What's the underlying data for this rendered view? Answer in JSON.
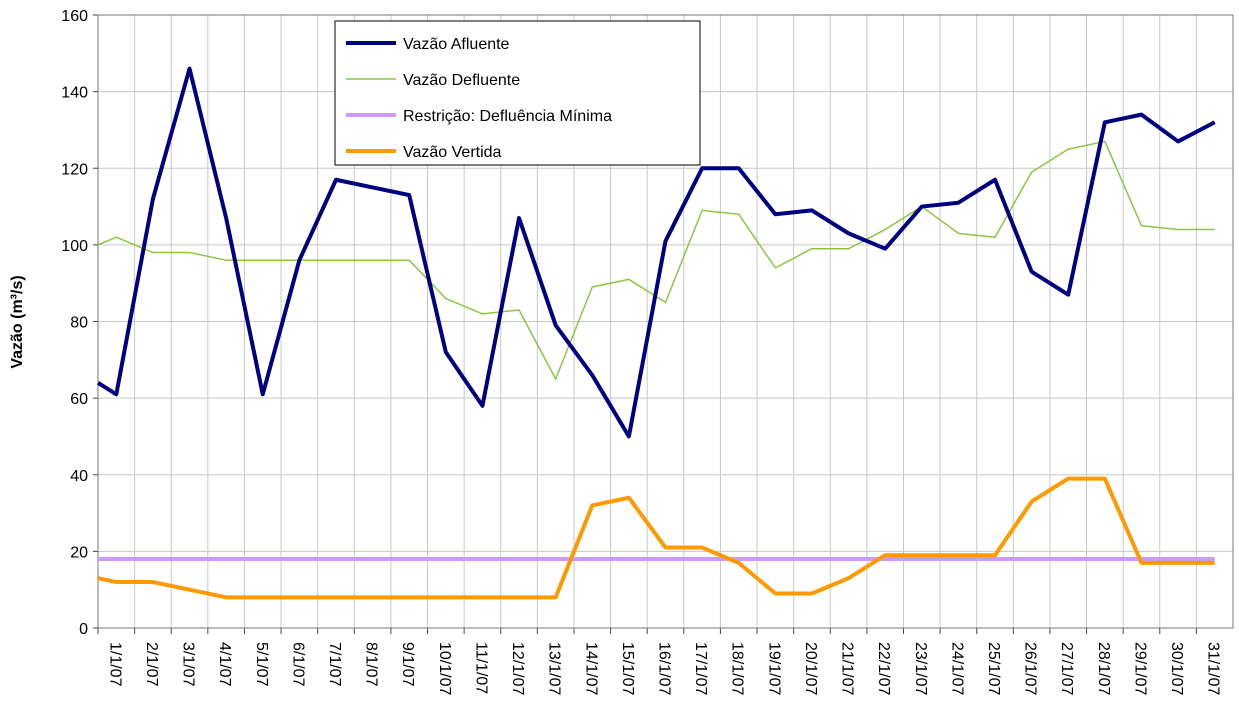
{
  "chart_data": {
    "type": "line",
    "ylabel": "Vazão (m³/s)",
    "x": [
      0.5,
      1,
      2,
      3,
      4,
      5,
      6,
      7,
      8,
      9,
      10,
      11,
      12,
      13,
      14,
      15,
      16,
      17,
      18,
      19,
      20,
      21,
      22,
      23,
      24,
      25,
      26,
      27,
      28,
      29,
      30,
      31
    ],
    "xlim": [
      0.5,
      31.5
    ],
    "xticks": [
      {
        "value": 1,
        "label": "1/1/07"
      },
      {
        "value": 2,
        "label": "2/1/07"
      },
      {
        "value": 3,
        "label": "3/1/07"
      },
      {
        "value": 4,
        "label": "4/1/07"
      },
      {
        "value": 5,
        "label": "5/1/07"
      },
      {
        "value": 6,
        "label": "6/1/07"
      },
      {
        "value": 7,
        "label": "7/1/07"
      },
      {
        "value": 8,
        "label": "8/1/07"
      },
      {
        "value": 9,
        "label": "9/1/07"
      },
      {
        "value": 10,
        "label": "10/1/07"
      },
      {
        "value": 11,
        "label": "11/1/07"
      },
      {
        "value": 12,
        "label": "12/1/07"
      },
      {
        "value": 13,
        "label": "13/1/07"
      },
      {
        "value": 14,
        "label": "14/1/07"
      },
      {
        "value": 15,
        "label": "15/1/07"
      },
      {
        "value": 16,
        "label": "16/1/07"
      },
      {
        "value": 17,
        "label": "17/1/07"
      },
      {
        "value": 18,
        "label": "18/1/07"
      },
      {
        "value": 19,
        "label": "19/1/07"
      },
      {
        "value": 20,
        "label": "20/1/07"
      },
      {
        "value": 21,
        "label": "21/1/07"
      },
      {
        "value": 22,
        "label": "22/1/07"
      },
      {
        "value": 23,
        "label": "23/1/07"
      },
      {
        "value": 24,
        "label": "24/1/07"
      },
      {
        "value": 25,
        "label": "25/1/07"
      },
      {
        "value": 26,
        "label": "26/1/07"
      },
      {
        "value": 27,
        "label": "27/1/07"
      },
      {
        "value": 28,
        "label": "28/1/07"
      },
      {
        "value": 29,
        "label": "29/1/07"
      },
      {
        "value": 30,
        "label": "30/1/07"
      },
      {
        "value": 31,
        "label": "31/1/07"
      }
    ],
    "ylim": [
      0,
      160
    ],
    "yticks": [
      0,
      20,
      40,
      60,
      80,
      100,
      120,
      140,
      160
    ],
    "grid": true,
    "series": [
      {
        "name": "Vazão Afluente",
        "color": "#000080",
        "width": 4,
        "values": [
          64,
          61,
          112,
          146,
          107,
          61,
          96,
          117,
          115,
          113,
          72,
          58,
          107,
          79,
          66,
          50,
          101,
          120,
          120,
          108,
          109,
          103,
          99,
          110,
          111,
          117,
          93,
          87,
          132,
          134,
          127,
          132
        ]
      },
      {
        "name": "Vazão Defluente",
        "color": "#8dc63f",
        "width": 1.5,
        "values": [
          100,
          102,
          98,
          98,
          96,
          96,
          96,
          96,
          96,
          96,
          86,
          82,
          83,
          65,
          89,
          91,
          85,
          109,
          108,
          94,
          99,
          99,
          104,
          110,
          103,
          102,
          119,
          125,
          127,
          105,
          104,
          104
        ]
      },
      {
        "name": "Restrição: Defluência Mínima",
        "color": "#cc99ff",
        "width": 4,
        "values": [
          18,
          18,
          18,
          18,
          18,
          18,
          18,
          18,
          18,
          18,
          18,
          18,
          18,
          18,
          18,
          18,
          18,
          18,
          18,
          18,
          18,
          18,
          18,
          18,
          18,
          18,
          18,
          18,
          18,
          18,
          18,
          18
        ]
      },
      {
        "name": "Vazão Vertida",
        "color": "#ff9900",
        "width": 4,
        "values": [
          13,
          12,
          12,
          10,
          8,
          8,
          8,
          8,
          8,
          8,
          8,
          8,
          8,
          8,
          32,
          34,
          21,
          21,
          17,
          9,
          9,
          13,
          19,
          19,
          19,
          19,
          33,
          39,
          39,
          17,
          17,
          17
        ]
      }
    ]
  }
}
